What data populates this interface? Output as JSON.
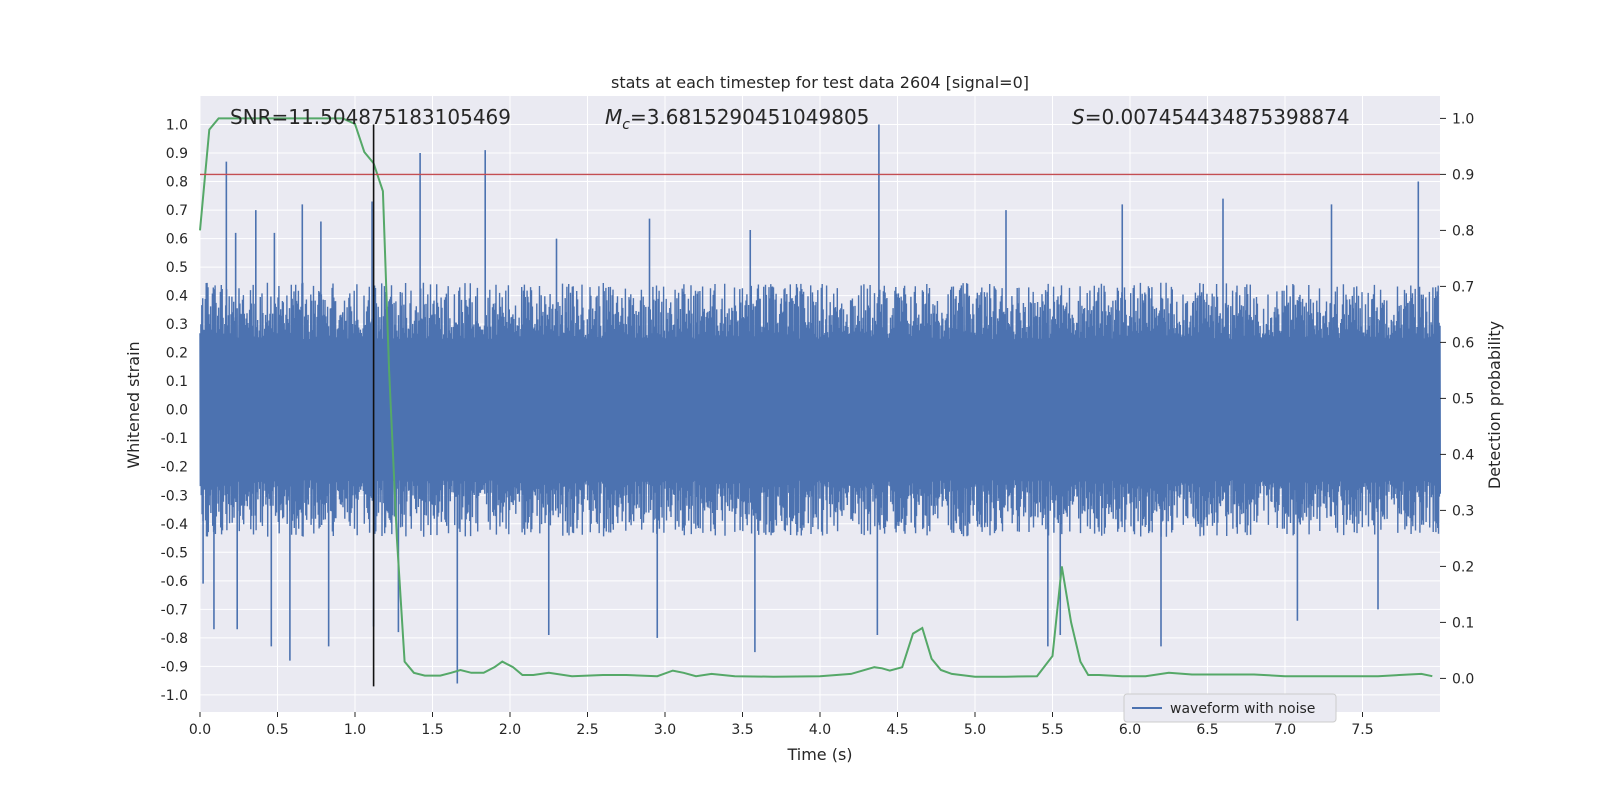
{
  "chart_data": {
    "type": "line",
    "title": "stats at each timestep for test data 2604 [signal=0]",
    "xlabel": "Time (s)",
    "ylabel_left": "Whitened strain",
    "ylabel_right": "Detection probability",
    "xlim": [
      0.0,
      8.0
    ],
    "ylim_left": [
      -1.06,
      1.1
    ],
    "ylim_right": [
      -0.06,
      1.04
    ],
    "x_ticks": [
      "0.0",
      "0.5",
      "1.0",
      "1.5",
      "2.0",
      "2.5",
      "3.0",
      "3.5",
      "4.0",
      "4.5",
      "5.0",
      "5.5",
      "6.0",
      "6.5",
      "7.0",
      "7.5"
    ],
    "x_tick_values": [
      0.0,
      0.5,
      1.0,
      1.5,
      2.0,
      2.5,
      3.0,
      3.5,
      4.0,
      4.5,
      5.0,
      5.5,
      6.0,
      6.5,
      7.0,
      7.5
    ],
    "y_left_ticks": [
      "1.0",
      "0.9",
      "0.8",
      "0.7",
      "0.6",
      "0.5",
      "0.4",
      "0.3",
      "0.2",
      "0.1",
      "0.0",
      "-0.1",
      "-0.2",
      "-0.3",
      "-0.4",
      "-0.5",
      "-0.6",
      "-0.7",
      "-0.8",
      "-0.9",
      "-1.0"
    ],
    "y_left_tick_values": [
      1.0,
      0.9,
      0.8,
      0.7,
      0.6,
      0.5,
      0.4,
      0.3,
      0.2,
      0.1,
      0.0,
      -0.1,
      -0.2,
      -0.3,
      -0.4,
      -0.5,
      -0.6,
      -0.7,
      -0.8,
      -0.9,
      -1.0
    ],
    "y_right_ticks": [
      "1.0",
      "0.9",
      "0.8",
      "0.7",
      "0.6",
      "0.5",
      "0.4",
      "0.3",
      "0.2",
      "0.1",
      "0.0"
    ],
    "y_right_tick_values": [
      1.0,
      0.9,
      0.8,
      0.7,
      0.6,
      0.5,
      0.4,
      0.3,
      0.2,
      0.1,
      0.0
    ],
    "annotations": {
      "snr": "SNR=11.504875183105469",
      "mc": "=3.6815290451049805",
      "mc_symbol": "M",
      "mc_subscript": "c",
      "s": "=0.007454434875398874",
      "s_symbol": "S"
    },
    "legend": {
      "label": "waveform with noise",
      "location": "lower-right"
    },
    "threshold": {
      "value": 0.9,
      "axis": "right",
      "color": "#c44e52"
    },
    "marker_time": 1.12,
    "waveform": {
      "name": "waveform with noise",
      "color": "#4c72b0",
      "typical_abs": 0.33,
      "spikes": [
        {
          "t": 0.17,
          "v": 0.87
        },
        {
          "t": 0.23,
          "v": 0.62
        },
        {
          "t": 0.36,
          "v": 0.7
        },
        {
          "t": 0.48,
          "v": 0.62
        },
        {
          "t": 0.66,
          "v": 0.72
        },
        {
          "t": 0.78,
          "v": 0.66
        },
        {
          "t": 1.11,
          "v": 0.73
        },
        {
          "t": 1.42,
          "v": 0.9
        },
        {
          "t": 1.84,
          "v": 0.91
        },
        {
          "t": 2.3,
          "v": 0.6
        },
        {
          "t": 2.9,
          "v": 0.67
        },
        {
          "t": 3.55,
          "v": 0.63
        },
        {
          "t": 4.38,
          "v": 1.0
        },
        {
          "t": 5.2,
          "v": 0.7
        },
        {
          "t": 5.95,
          "v": 0.72
        },
        {
          "t": 6.6,
          "v": 0.74
        },
        {
          "t": 7.3,
          "v": 0.72
        },
        {
          "t": 7.86,
          "v": 0.8
        },
        {
          "t": 0.02,
          "v": -0.61
        },
        {
          "t": 0.09,
          "v": -0.77
        },
        {
          "t": 0.24,
          "v": -0.77
        },
        {
          "t": 0.46,
          "v": -0.83
        },
        {
          "t": 0.58,
          "v": -0.88
        },
        {
          "t": 0.83,
          "v": -0.83
        },
        {
          "t": 1.12,
          "v": -0.76
        },
        {
          "t": 1.28,
          "v": -0.78
        },
        {
          "t": 1.66,
          "v": -0.96
        },
        {
          "t": 2.25,
          "v": -0.79
        },
        {
          "t": 2.95,
          "v": -0.8
        },
        {
          "t": 3.58,
          "v": -0.85
        },
        {
          "t": 4.37,
          "v": -0.79
        },
        {
          "t": 5.47,
          "v": -0.83
        },
        {
          "t": 5.55,
          "v": -0.79
        },
        {
          "t": 6.2,
          "v": -0.83
        },
        {
          "t": 7.08,
          "v": -0.74
        },
        {
          "t": 7.6,
          "v": -0.7
        }
      ]
    },
    "detection": {
      "name": "detection probability",
      "color": "#55a868",
      "x": [
        0.0,
        0.06,
        0.12,
        0.2,
        0.4,
        0.6,
        0.8,
        0.92,
        1.0,
        1.06,
        1.12,
        1.18,
        1.22,
        1.27,
        1.32,
        1.38,
        1.45,
        1.55,
        1.62,
        1.68,
        1.75,
        1.83,
        1.9,
        1.95,
        2.02,
        2.08,
        2.15,
        2.25,
        2.4,
        2.6,
        2.75,
        2.95,
        3.05,
        3.12,
        3.2,
        3.3,
        3.45,
        3.7,
        4.0,
        4.2,
        4.35,
        4.4,
        4.45,
        4.53,
        4.6,
        4.66,
        4.72,
        4.78,
        4.85,
        5.0,
        5.2,
        5.4,
        5.5,
        5.56,
        5.62,
        5.68,
        5.73,
        5.8,
        5.95,
        6.1,
        6.25,
        6.4,
        6.6,
        6.8,
        7.0,
        7.3,
        7.6,
        7.8,
        7.88,
        7.95
      ],
      "y": [
        0.8,
        0.98,
        1.0,
        1.0,
        1.0,
        1.0,
        1.0,
        1.0,
        0.99,
        0.94,
        0.92,
        0.87,
        0.55,
        0.25,
        0.03,
        0.01,
        0.005,
        0.005,
        0.01,
        0.015,
        0.01,
        0.01,
        0.02,
        0.03,
        0.02,
        0.006,
        0.006,
        0.01,
        0.004,
        0.006,
        0.006,
        0.004,
        0.014,
        0.01,
        0.004,
        0.008,
        0.004,
        0.003,
        0.004,
        0.008,
        0.02,
        0.018,
        0.014,
        0.02,
        0.08,
        0.09,
        0.035,
        0.015,
        0.008,
        0.003,
        0.003,
        0.004,
        0.04,
        0.2,
        0.1,
        0.03,
        0.006,
        0.006,
        0.004,
        0.004,
        0.01,
        0.007,
        0.007,
        0.007,
        0.004,
        0.004,
        0.004,
        0.007,
        0.008,
        0.004
      ]
    }
  }
}
